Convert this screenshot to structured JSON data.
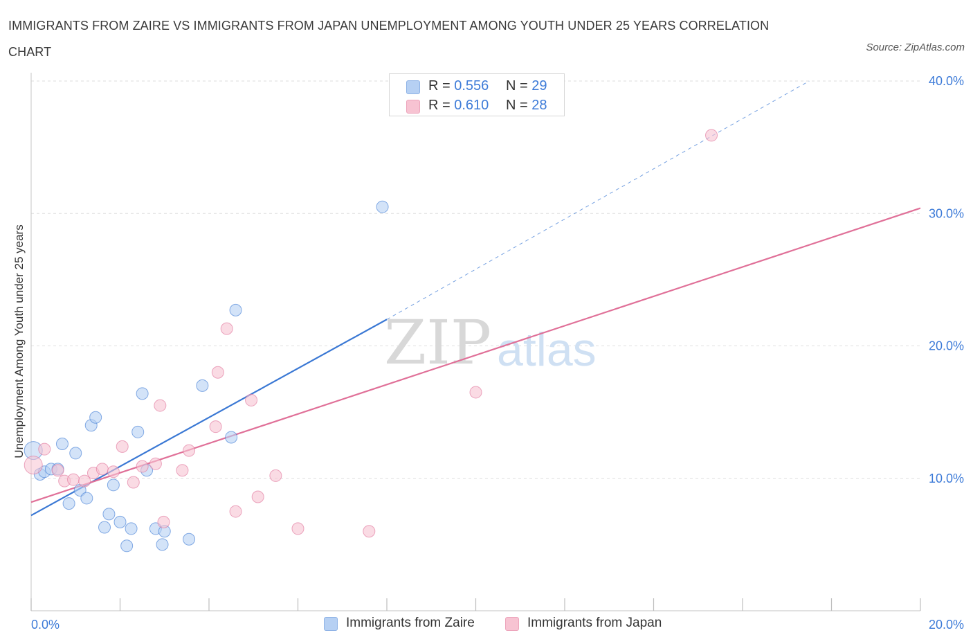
{
  "title": "IMMIGRANTS FROM ZAIRE VS IMMIGRANTS FROM JAPAN UNEMPLOYMENT AMONG YOUTH UNDER 25 YEARS CORRELATION CHART",
  "source": "Source: ZipAtlas.com",
  "watermark": {
    "zip": "ZIP",
    "atlas": "atlas"
  },
  "legend_top": {
    "rows": [
      {
        "r_label": "R =",
        "r_value": "0.556",
        "n_label": "N =",
        "n_value": "29"
      },
      {
        "r_label": "R =",
        "r_value": "0.610",
        "n_label": "N =",
        "n_value": "28"
      }
    ]
  },
  "chart_data": {
    "type": "scatter",
    "title": "IMMIGRANTS FROM ZAIRE VS IMMIGRANTS FROM JAPAN UNEMPLOYMENT AMONG YOUTH UNDER 25 YEARS CORRELATION CHART",
    "xlabel": "",
    "ylabel": "Unemployment Among Youth under 25 years",
    "xlim": [
      0,
      20
    ],
    "ylim": [
      0,
      40
    ],
    "x_tick_labels": [
      {
        "value": 0,
        "label": "0.0%"
      },
      {
        "value": 20,
        "label": "20.0%"
      }
    ],
    "y_tick_labels": [
      {
        "value": 10,
        "label": "10.0%"
      },
      {
        "value": 20,
        "label": "20.0%"
      },
      {
        "value": 30,
        "label": "30.0%"
      },
      {
        "value": 40,
        "label": "40.0%"
      }
    ],
    "x_minor_ticks": [
      0,
      2,
      4,
      6,
      8,
      10,
      12,
      14,
      16,
      18,
      20
    ],
    "grid": true,
    "legend_position": "bottom-center",
    "series": [
      {
        "name": "Immigrants from Zaire",
        "color": "#3a78d4",
        "fill": "#b6d0f3",
        "r": 0.556,
        "n": 29,
        "points": [
          [
            0.05,
            12.1
          ],
          [
            0.2,
            10.3
          ],
          [
            0.3,
            10.5
          ],
          [
            0.45,
            10.7
          ],
          [
            0.6,
            10.7
          ],
          [
            0.7,
            12.6
          ],
          [
            0.85,
            8.1
          ],
          [
            1.0,
            11.9
          ],
          [
            1.1,
            9.1
          ],
          [
            1.25,
            8.5
          ],
          [
            1.35,
            14.0
          ],
          [
            1.45,
            14.6
          ],
          [
            1.65,
            6.3
          ],
          [
            1.75,
            7.3
          ],
          [
            1.85,
            9.5
          ],
          [
            2.0,
            6.7
          ],
          [
            2.15,
            4.9
          ],
          [
            2.25,
            6.2
          ],
          [
            2.4,
            13.5
          ],
          [
            2.5,
            16.4
          ],
          [
            2.6,
            10.6
          ],
          [
            2.8,
            6.2
          ],
          [
            2.95,
            5.0
          ],
          [
            3.0,
            6.0
          ],
          [
            3.55,
            5.4
          ],
          [
            3.85,
            17.0
          ],
          [
            4.5,
            13.1
          ],
          [
            4.6,
            22.7
          ],
          [
            7.9,
            30.5
          ]
        ],
        "trend": {
          "x0": 0,
          "y0": 7.2,
          "x1": 8.0,
          "y1": 22.0,
          "dashed_to_x": 17.5,
          "dashed_to_y": 40.0
        }
      },
      {
        "name": "Immigrants from Japan",
        "color": "#e07098",
        "fill": "#f7c3d2",
        "r": 0.61,
        "n": 28,
        "points": [
          [
            0.05,
            11.0
          ],
          [
            0.3,
            12.2
          ],
          [
            0.6,
            10.6
          ],
          [
            0.75,
            9.8
          ],
          [
            0.95,
            9.9
          ],
          [
            1.2,
            9.8
          ],
          [
            1.4,
            10.4
          ],
          [
            1.6,
            10.7
          ],
          [
            1.85,
            10.5
          ],
          [
            2.05,
            12.4
          ],
          [
            2.3,
            9.7
          ],
          [
            2.5,
            10.9
          ],
          [
            2.8,
            11.1
          ],
          [
            2.9,
            15.5
          ],
          [
            2.98,
            6.7
          ],
          [
            3.4,
            10.6
          ],
          [
            3.55,
            12.1
          ],
          [
            4.15,
            13.9
          ],
          [
            4.2,
            18.0
          ],
          [
            4.4,
            21.3
          ],
          [
            4.6,
            7.5
          ],
          [
            4.95,
            15.9
          ],
          [
            5.1,
            8.6
          ],
          [
            5.5,
            10.2
          ],
          [
            6.0,
            6.2
          ],
          [
            7.6,
            6.0
          ],
          [
            10.0,
            16.5
          ],
          [
            15.3,
            35.9
          ]
        ],
        "trend": {
          "x0": 0,
          "y0": 8.2,
          "x1": 20,
          "y1": 30.4
        }
      }
    ]
  }
}
